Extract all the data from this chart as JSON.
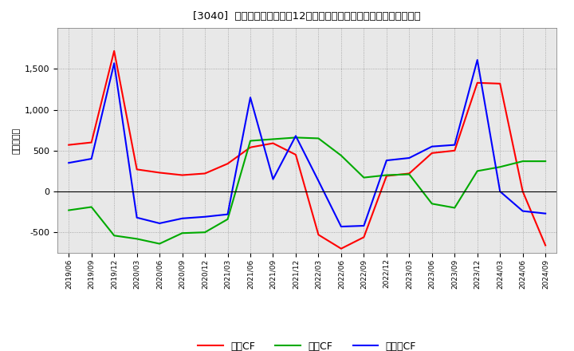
{
  "title": "[3040]  キャッシュフローの12か月移動合計の対前年同期増減額の推移",
  "ylabel": "（百万円）",
  "background_color": "#ffffff",
  "plot_bg_color": "#e8e8e8",
  "x_labels": [
    "2019/06",
    "2019/09",
    "2019/12",
    "2020/03",
    "2020/06",
    "2020/09",
    "2020/12",
    "2021/03",
    "2021/06",
    "2021/09",
    "2021/12",
    "2022/03",
    "2022/06",
    "2022/09",
    "2022/12",
    "2023/03",
    "2023/06",
    "2023/09",
    "2023/12",
    "2024/03",
    "2024/06",
    "2024/09"
  ],
  "eigyo_cf": [
    570,
    600,
    1720,
    270,
    230,
    200,
    220,
    340,
    540,
    590,
    450,
    -530,
    -700,
    -560,
    190,
    220,
    470,
    500,
    1330,
    1320,
    0,
    -660
  ],
  "toshi_cf": [
    -230,
    -190,
    -540,
    -580,
    -640,
    -510,
    -500,
    -340,
    620,
    640,
    660,
    650,
    440,
    170,
    200,
    210,
    -150,
    -200,
    250,
    300,
    370,
    370
  ],
  "free_cf": [
    350,
    400,
    1570,
    -320,
    -390,
    -330,
    -310,
    -280,
    1150,
    150,
    680,
    130,
    -430,
    -420,
    380,
    410,
    550,
    570,
    1610,
    0,
    -240,
    -270
  ],
  "eigyo_color": "#ff0000",
  "toshi_color": "#00aa00",
  "free_color": "#0000ff",
  "ylim_min": -750,
  "ylim_max": 2000,
  "yticks": [
    -500,
    0,
    500,
    1000,
    1500
  ],
  "legend_labels": [
    "営業CF",
    "投資CF",
    "フリーCF"
  ]
}
